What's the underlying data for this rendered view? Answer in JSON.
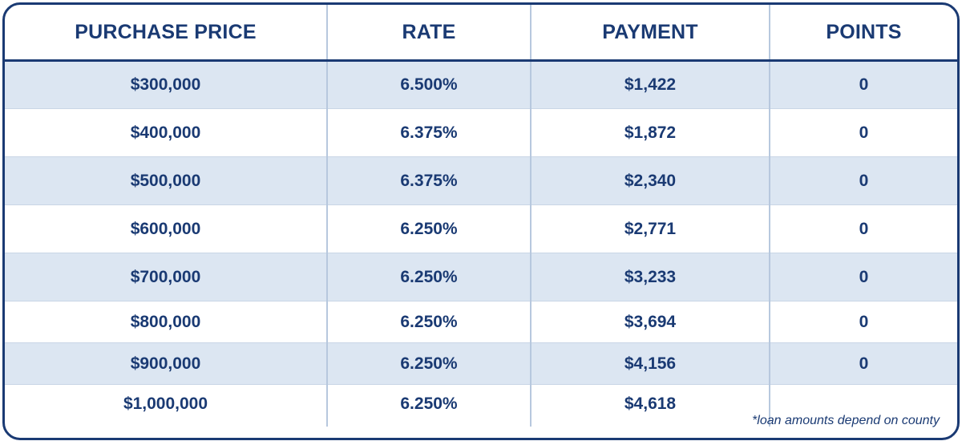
{
  "table": {
    "headers": [
      "PURCHASE PRICE",
      "RATE",
      "PAYMENT",
      "POINTS"
    ],
    "rows": [
      {
        "price": "$300,000",
        "rate": "6.500%",
        "payment": "$1,422",
        "points": "0"
      },
      {
        "price": "$400,000",
        "rate": "6.375%",
        "payment": "$1,872",
        "points": "0"
      },
      {
        "price": "$500,000",
        "rate": "6.375%",
        "payment": "$2,340",
        "points": "0"
      },
      {
        "price": "$600,000",
        "rate": "6.250%",
        "payment": "$2,771",
        "points": "0"
      },
      {
        "price": "$700,000",
        "rate": "6.250%",
        "payment": "$3,233",
        "points": "0"
      },
      {
        "price": "$800,000",
        "rate": "6.250%",
        "payment": "$3,694",
        "points": "0"
      },
      {
        "price": "$900,000",
        "rate": "6.250%",
        "payment": "$4,156",
        "points": "0"
      },
      {
        "price": "$1,000,000",
        "rate": "6.250%",
        "payment": "$4,618",
        "points": ""
      }
    ]
  },
  "footnote": "*loan amounts depend on county",
  "colors": {
    "text": "#1a3a73",
    "border": "#1a3a73",
    "shade": "#dce6f2",
    "divider": "#b7c8de"
  }
}
